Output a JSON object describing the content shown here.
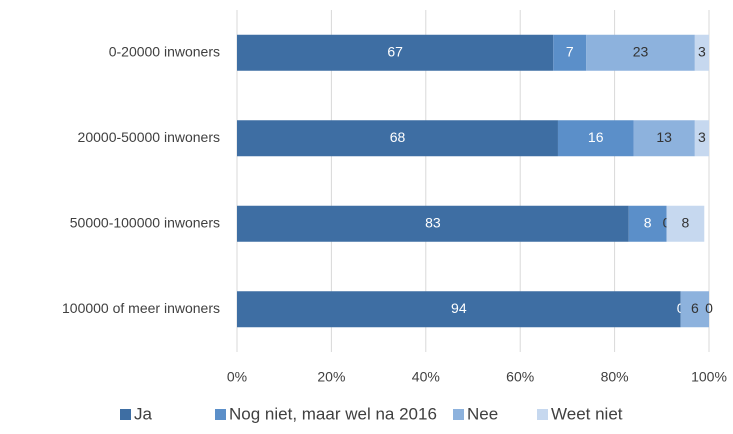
{
  "chart_data": {
    "type": "stacked-bar-horizontal",
    "categories": [
      "0-20000 inwoners",
      "20000-50000 inwoners",
      "50000-100000 inwoners",
      "100000 of meer inwoners"
    ],
    "series": [
      {
        "name": "Ja",
        "color": "#3e6ea3",
        "values": [
          67,
          68,
          83,
          94
        ]
      },
      {
        "name": "Nog niet, maar wel na 2016",
        "color": "#5b8fc9",
        "values": [
          7,
          16,
          8,
          0
        ]
      },
      {
        "name": "Nee",
        "color": "#8db2dd",
        "values": [
          23,
          13,
          0,
          6
        ]
      },
      {
        "name": "Weet niet",
        "color": "#c6d8ef",
        "values": [
          3,
          3,
          8,
          0
        ]
      }
    ],
    "xlim": [
      0,
      100
    ],
    "xticks": [
      {
        "value": 0,
        "label": "0%"
      },
      {
        "value": 20,
        "label": "20%"
      },
      {
        "value": 40,
        "label": "40%"
      },
      {
        "value": 60,
        "label": "60%"
      },
      {
        "value": 80,
        "label": "80%"
      },
      {
        "value": 100,
        "label": "100%"
      }
    ],
    "grid": true
  }
}
